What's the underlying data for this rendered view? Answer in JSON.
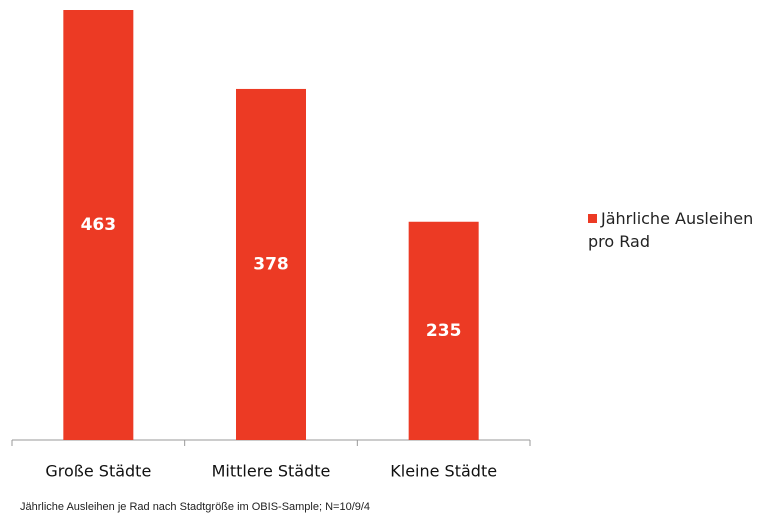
{
  "chart_data": {
    "type": "bar",
    "categories": [
      "Große Städte",
      "Mittlere Städte",
      "Kleine Städte"
    ],
    "series": [
      {
        "name": "Jährliche Ausleihen pro Rad",
        "color": "#ec3a24",
        "values": [
          463,
          378,
          235
        ]
      }
    ],
    "caption": "Jährliche Ausleihen je Rad nach Stadtgröße im OBIS-Sample; N=10/9/4",
    "legend": "right"
  }
}
